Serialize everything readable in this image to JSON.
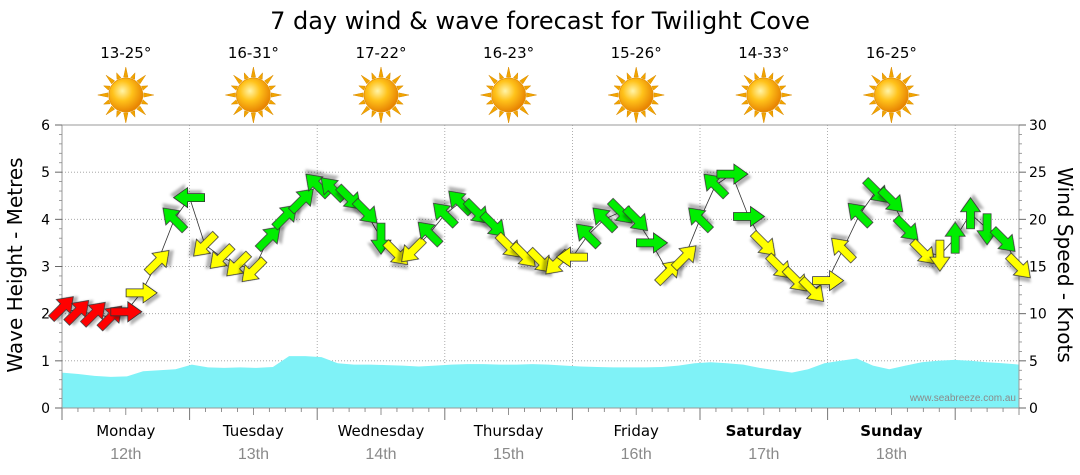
{
  "chart_data": {
    "type": "line",
    "title": "7 day wind & wave forecast for Twilight Cove",
    "left_axis": {
      "label": "Wave Height - Metres",
      "ylim": [
        0,
        6
      ],
      "ticks": [
        "0",
        "1",
        "2",
        "3",
        "4",
        "5",
        "6"
      ]
    },
    "right_axis": {
      "label": "Wind Speed - Knots",
      "ylim": [
        0,
        30
      ],
      "ticks": [
        "0",
        "5",
        "10",
        "15",
        "20",
        "25",
        "30"
      ]
    },
    "days": [
      {
        "name": "Monday",
        "date": "12th",
        "temp": "13-25°",
        "weekend": false
      },
      {
        "name": "Tuesday",
        "date": "13th",
        "temp": "16-31°",
        "weekend": false
      },
      {
        "name": "Wednesday",
        "date": "14th",
        "temp": "17-22°",
        "weekend": false
      },
      {
        "name": "Thursday",
        "date": "15th",
        "temp": "16-23°",
        "weekend": false
      },
      {
        "name": "Friday",
        "date": "16th",
        "temp": "15-26°",
        "weekend": false
      },
      {
        "name": "Saturday",
        "date": "17th",
        "temp": "14-33°",
        "weekend": true
      },
      {
        "name": "Sunday",
        "date": "18th",
        "temp": "16-25°",
        "weekend": true
      }
    ],
    "series": [
      {
        "name": "Wave Height",
        "units": "m",
        "axis": "left",
        "color": "#7ff2f7",
        "values": [
          0.75,
          0.72,
          0.68,
          0.66,
          0.67,
          0.78,
          0.8,
          0.82,
          0.92,
          0.86,
          0.85,
          0.86,
          0.85,
          0.87,
          1.1,
          1.1,
          1.08,
          0.95,
          0.92,
          0.92,
          0.91,
          0.9,
          0.88,
          0.9,
          0.92,
          0.93,
          0.93,
          0.92,
          0.92,
          0.93,
          0.92,
          0.9,
          0.88,
          0.87,
          0.86,
          0.86,
          0.86,
          0.87,
          0.9,
          0.95,
          0.97,
          0.95,
          0.92,
          0.85,
          0.8,
          0.75,
          0.82,
          0.95,
          1.0,
          1.05,
          0.9,
          0.82,
          0.9,
          0.97,
          1.0,
          1.02,
          1.0,
          0.97,
          0.95,
          0.92
        ]
      },
      {
        "name": "Wind Speed",
        "units": "knots",
        "axis": "right",
        "arrows": [
          {
            "t": 0.0,
            "kn": 10.6,
            "dir": "SW"
          },
          {
            "t": 0.12,
            "kn": 10.2,
            "dir": "SW"
          },
          {
            "t": 0.25,
            "kn": 10.0,
            "dir": "SW"
          },
          {
            "t": 0.38,
            "kn": 9.6,
            "dir": "SW"
          },
          {
            "t": 0.5,
            "kn": 10.2,
            "dir": "W"
          },
          {
            "t": 0.62,
            "kn": 12.2,
            "dir": "W"
          },
          {
            "t": 0.75,
            "kn": 15.5,
            "dir": "SW"
          },
          {
            "t": 0.88,
            "kn": 20.0,
            "dir": "SE"
          },
          {
            "t": 1.0,
            "kn": 22.3,
            "dir": "E"
          },
          {
            "t": 1.12,
            "kn": 17.3,
            "dir": "NE"
          },
          {
            "t": 1.25,
            "kn": 16.0,
            "dir": "NE"
          },
          {
            "t": 1.38,
            "kn": 15.2,
            "dir": "NE"
          },
          {
            "t": 1.5,
            "kn": 14.6,
            "dir": "NE"
          },
          {
            "t": 1.62,
            "kn": 18.0,
            "dir": "SW"
          },
          {
            "t": 1.75,
            "kn": 20.3,
            "dir": "SW"
          },
          {
            "t": 1.88,
            "kn": 22.0,
            "dir": "SW"
          },
          {
            "t": 2.0,
            "kn": 23.6,
            "dir": "SE"
          },
          {
            "t": 2.12,
            "kn": 23.2,
            "dir": "SE"
          },
          {
            "t": 2.25,
            "kn": 22.3,
            "dir": "NW"
          },
          {
            "t": 2.38,
            "kn": 20.8,
            "dir": "NW"
          },
          {
            "t": 2.5,
            "kn": 18.0,
            "dir": "N"
          },
          {
            "t": 2.62,
            "kn": 16.4,
            "dir": "NW"
          },
          {
            "t": 2.75,
            "kn": 16.7,
            "dir": "NE"
          },
          {
            "t": 2.88,
            "kn": 18.5,
            "dir": "SE"
          },
          {
            "t": 3.0,
            "kn": 20.5,
            "dir": "SE"
          },
          {
            "t": 3.12,
            "kn": 21.8,
            "dir": "SE"
          },
          {
            "t": 3.25,
            "kn": 20.8,
            "dir": "NW"
          },
          {
            "t": 3.38,
            "kn": 19.4,
            "dir": "NW"
          },
          {
            "t": 3.5,
            "kn": 17.2,
            "dir": "NW"
          },
          {
            "t": 3.62,
            "kn": 16.2,
            "dir": "NW"
          },
          {
            "t": 3.75,
            "kn": 15.6,
            "dir": "NW"
          },
          {
            "t": 3.88,
            "kn": 15.4,
            "dir": "NE"
          },
          {
            "t": 4.0,
            "kn": 16.0,
            "dir": "E"
          },
          {
            "t": 4.12,
            "kn": 18.3,
            "dir": "SE"
          },
          {
            "t": 4.25,
            "kn": 20.0,
            "dir": "SE"
          },
          {
            "t": 4.38,
            "kn": 20.8,
            "dir": "NW"
          },
          {
            "t": 4.5,
            "kn": 20.0,
            "dir": "NW"
          },
          {
            "t": 4.62,
            "kn": 17.5,
            "dir": "W"
          },
          {
            "t": 4.75,
            "kn": 14.4,
            "dir": "SW"
          },
          {
            "t": 4.88,
            "kn": 16.0,
            "dir": "SW"
          },
          {
            "t": 5.0,
            "kn": 20.0,
            "dir": "SE"
          },
          {
            "t": 5.12,
            "kn": 23.6,
            "dir": "SE"
          },
          {
            "t": 5.25,
            "kn": 24.8,
            "dir": "W"
          },
          {
            "t": 5.38,
            "kn": 20.3,
            "dir": "W"
          },
          {
            "t": 5.5,
            "kn": 17.4,
            "dir": "NW"
          },
          {
            "t": 5.62,
            "kn": 15.0,
            "dir": "NW"
          },
          {
            "t": 5.75,
            "kn": 13.6,
            "dir": "NW"
          },
          {
            "t": 5.88,
            "kn": 12.5,
            "dir": "NW"
          },
          {
            "t": 6.0,
            "kn": 13.5,
            "dir": "W"
          },
          {
            "t": 6.12,
            "kn": 16.8,
            "dir": "SE"
          },
          {
            "t": 6.25,
            "kn": 20.5,
            "dir": "SE"
          },
          {
            "t": 6.38,
            "kn": 23.0,
            "dir": "NW"
          },
          {
            "t": 6.5,
            "kn": 22.0,
            "dir": "NW"
          },
          {
            "t": 6.62,
            "kn": 19.0,
            "dir": "NW"
          },
          {
            "t": 6.75,
            "kn": 16.5,
            "dir": "NW"
          },
          {
            "t": 6.88,
            "kn": 16.2,
            "dir": "N"
          },
          {
            "t": 7.0,
            "kn": 18.0,
            "dir": "S"
          },
          {
            "t": 7.12,
            "kn": 20.6,
            "dir": "S"
          },
          {
            "t": 7.25,
            "kn": 19.0,
            "dir": "N"
          },
          {
            "t": 7.38,
            "kn": 17.8,
            "dir": "NW"
          },
          {
            "t": 7.5,
            "kn": 15.0,
            "dir": "NW"
          }
        ]
      }
    ],
    "wind_colors": {
      "strong": "#ff0000",
      "moderate": "#ffff00",
      "light": "#00ee00"
    },
    "watermark": "www.seabreeze.com.au"
  }
}
